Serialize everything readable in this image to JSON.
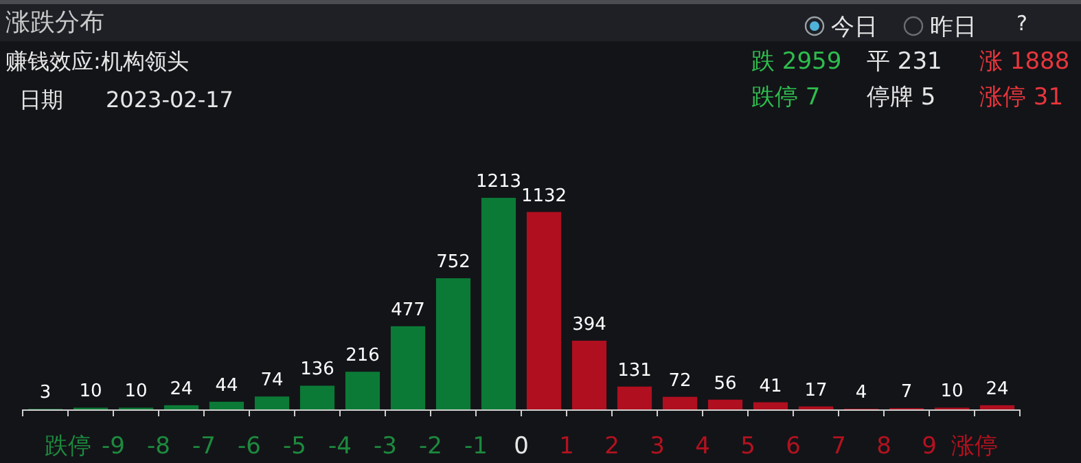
{
  "chart_data": {
    "type": "bar",
    "title": "涨跌分布",
    "annotations": [
      "今日",
      "昨日",
      "?",
      "赚钱效应:机构领头",
      "日期",
      "2023-02-17",
      "跌 2959",
      "平 231",
      "涨 1888",
      "跌停 7",
      "停牌 5",
      "涨停 31"
    ],
    "x": [
      -10.5,
      -9.5,
      -8.5,
      -7.5,
      -6.5,
      -5.5,
      -4.5,
      -3.5,
      -2.5,
      -1.5,
      -0.5,
      0.5,
      1.5,
      2.5,
      3.5,
      4.5,
      5.5,
      6.5,
      7.5,
      8.5,
      9.5,
      10.5
    ],
    "values": [
      3,
      10,
      10,
      24,
      44,
      74,
      136,
      216,
      477,
      752,
      1213,
      1132,
      394,
      131,
      72,
      56,
      41,
      17,
      4,
      7,
      10,
      24
    ],
    "colors": [
      "#0b7a36",
      "#0b7a36",
      "#0b7a36",
      "#0b7a36",
      "#0b7a36",
      "#0b7a36",
      "#0b7a36",
      "#0b7a36",
      "#0b7a36",
      "#0b7a36",
      "#0b7a36",
      "#b00f1f",
      "#b00f1f",
      "#b00f1f",
      "#b00f1f",
      "#b00f1f",
      "#b00f1f",
      "#b00f1f",
      "#b00f1f",
      "#b00f1f",
      "#b00f1f",
      "#b00f1f"
    ],
    "xlim": [
      -11,
      11
    ],
    "xticks": [
      {
        "value": -11,
        "label": null
      },
      {
        "value": -10,
        "label": "跌停"
      },
      {
        "value": -9,
        "label": "-9"
      },
      {
        "value": -8,
        "label": "-8"
      },
      {
        "value": -7,
        "label": "-7"
      },
      {
        "value": -6,
        "label": "-6"
      },
      {
        "value": -5,
        "label": "-5"
      },
      {
        "value": -4,
        "label": "-4"
      },
      {
        "value": -3,
        "label": "-3"
      },
      {
        "value": -2,
        "label": "-2"
      },
      {
        "value": -1,
        "label": "-1"
      },
      {
        "value": 0,
        "label": "0"
      },
      {
        "value": 1,
        "label": "1"
      },
      {
        "value": 2,
        "label": "2"
      },
      {
        "value": 3,
        "label": "3"
      },
      {
        "value": 4,
        "label": "4"
      },
      {
        "value": 5,
        "label": "5"
      },
      {
        "value": 6,
        "label": "6"
      },
      {
        "value": 7,
        "label": "7"
      },
      {
        "value": 8,
        "label": "8"
      },
      {
        "value": 9,
        "label": "9"
      },
      {
        "value": 10,
        "label": "涨停"
      },
      {
        "value": 11,
        "label": null
      }
    ],
    "data_labels": true
  }
}
